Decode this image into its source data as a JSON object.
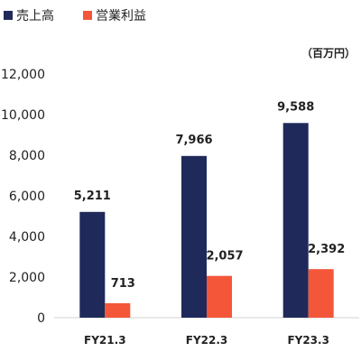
{
  "chart_data": {
    "type": "bar",
    "unit_label": "（百万円）",
    "categories": [
      "FY21.3",
      "FY22.3",
      "FY23.3"
    ],
    "series": [
      {
        "name": "売上高",
        "color": "#1f2a5a",
        "values": [
          5211,
          7966,
          9588
        ],
        "labels": [
          "5,211",
          "7,966",
          "9,588"
        ]
      },
      {
        "name": "営業利益",
        "color": "#f4563a",
        "values": [
          713,
          2057,
          2392
        ],
        "labels": [
          "713",
          "2,057",
          "2,392"
        ]
      }
    ],
    "ylim": [
      0,
      12000
    ],
    "yticks": [
      0,
      2000,
      4000,
      6000,
      8000,
      10000,
      12000
    ],
    "ytick_labels": [
      "0",
      "2,000",
      "4,000",
      "6,000",
      "8,000",
      "10,000",
      "12,000"
    ],
    "grid": false,
    "legend_position": "top-left"
  }
}
